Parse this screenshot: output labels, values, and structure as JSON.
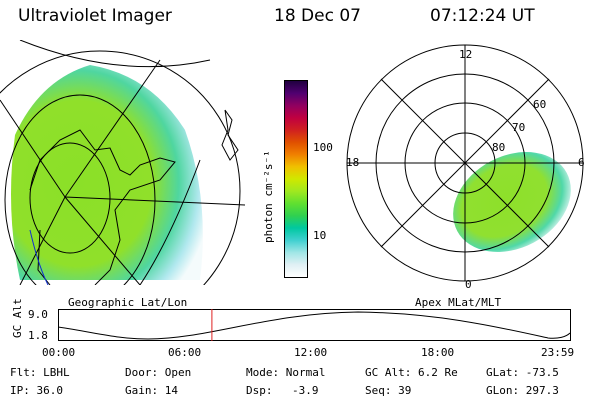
{
  "header": {
    "instrument": "Ultraviolet Imager",
    "date": "18 Dec 07",
    "time": "07:12:24 UT"
  },
  "left_map": {
    "label": "Geographic Lat/Lon"
  },
  "right_map": {
    "label": "Apex MLat/MLT",
    "mlt_labels": [
      "12",
      "18",
      "6",
      "0"
    ],
    "lat_labels": [
      "60",
      "70",
      "80"
    ]
  },
  "colorbar": {
    "unit_label": "photon cm⁻²s⁻¹",
    "ticks": [
      "100",
      "10"
    ],
    "colors": [
      "#ffffff",
      "#e0f0f4",
      "#a0e6e6",
      "#40d0d0",
      "#00c8a0",
      "#30d050",
      "#60e030",
      "#a0e820",
      "#d0e800",
      "#f0c000",
      "#f08000",
      "#e05000",
      "#d02020",
      "#c00040",
      "#900060",
      "#500070",
      "#200040"
    ]
  },
  "altitude_plot": {
    "ylabel": "GC Alt",
    "yticks": [
      "9.0",
      "1.8"
    ],
    "xticks": [
      "00:00",
      "06:00",
      "12:00",
      "18:00",
      "23:59"
    ],
    "current_time_fraction": 0.3
  },
  "info": {
    "flt": "Flt: LBHL",
    "door": "Door: Open",
    "mode": "Mode: Normal",
    "gcalt": "GC Alt: 6.2 Re",
    "glat": "GLat: -73.5",
    "ip": "IP: 36.0",
    "gain": "Gain: 14",
    "dsp_label": "Dsp:",
    "dsp_value": "-3.9",
    "seq": "Seq: 39",
    "glon": "GLon: 297.3"
  }
}
